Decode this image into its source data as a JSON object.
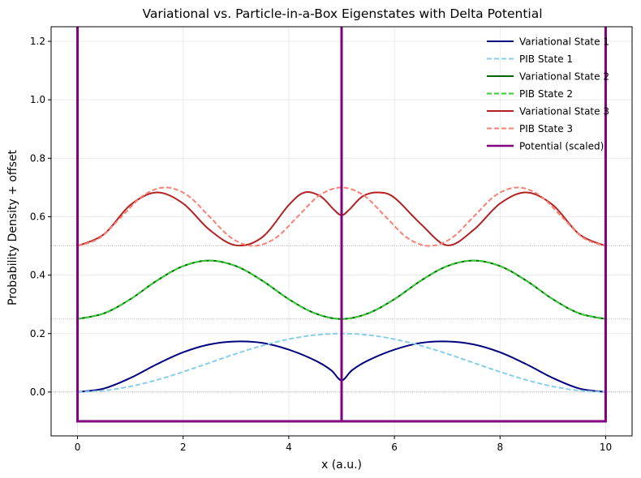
{
  "chart_data": {
    "type": "line",
    "title": "Variational vs. Particle-in-a-Box Eigenstates with Delta Potential",
    "xlabel": "x (a.u.)",
    "ylabel": "Probability Density + offset",
    "xlim": [
      -0.5,
      10.5
    ],
    "ylim": [
      -0.15,
      1.25
    ],
    "xticks": [
      "0",
      "2",
      "4",
      "6",
      "8",
      "10"
    ],
    "xtick_values": [
      0,
      2,
      4,
      6,
      8,
      10
    ],
    "yticks": [
      "0.0",
      "0.2",
      "0.4",
      "0.6",
      "0.8",
      "1.0",
      "1.2"
    ],
    "ytick_values": [
      0.0,
      0.2,
      0.4,
      0.6,
      0.8,
      1.0,
      1.2
    ],
    "grid": true,
    "legend_position": "top-right",
    "offset_lines": [
      0.0,
      0.25,
      0.5
    ],
    "series": [
      {
        "name": "Variational State 1",
        "color": "#000080",
        "style": "solid",
        "x": [
          0,
          0.5,
          1,
          1.5,
          2,
          2.5,
          3,
          3.5,
          4,
          4.5,
          4.8,
          5.0,
          5.2,
          5.5,
          6,
          6.5,
          7,
          7.5,
          8,
          8.5,
          9,
          9.5,
          10
        ],
        "y": [
          0.0,
          0.012,
          0.048,
          0.095,
          0.136,
          0.163,
          0.173,
          0.168,
          0.145,
          0.108,
          0.075,
          0.04,
          0.075,
          0.108,
          0.145,
          0.168,
          0.173,
          0.163,
          0.136,
          0.095,
          0.048,
          0.012,
          0.0
        ]
      },
      {
        "name": "PIB State 1",
        "color": "#87CEEB",
        "style": "dashed",
        "x": [
          0,
          0.5,
          1,
          1.5,
          2,
          2.5,
          3,
          3.5,
          4,
          4.5,
          5,
          5.5,
          6,
          6.5,
          7,
          7.5,
          8,
          8.5,
          9,
          9.5,
          10
        ],
        "y": [
          0.0,
          0.0049,
          0.0191,
          0.0412,
          0.0691,
          0.1,
          0.1309,
          0.1588,
          0.1809,
          0.1951,
          0.2,
          0.1951,
          0.1809,
          0.1588,
          0.1309,
          0.1,
          0.0691,
          0.0412,
          0.0191,
          0.0049,
          0.0
        ]
      },
      {
        "name": "Variational State 2",
        "color": "#006400",
        "style": "solid",
        "x": [
          0,
          0.5,
          1,
          1.5,
          2,
          2.5,
          3,
          3.5,
          4,
          4.5,
          5,
          5.5,
          6,
          6.5,
          7,
          7.5,
          8,
          8.5,
          9,
          9.5,
          10
        ],
        "y": [
          0.25,
          0.2691,
          0.3176,
          0.3809,
          0.431,
          0.45,
          0.431,
          0.3809,
          0.3176,
          0.2691,
          0.25,
          0.2691,
          0.3176,
          0.3809,
          0.431,
          0.45,
          0.431,
          0.3809,
          0.3176,
          0.2691,
          0.25
        ]
      },
      {
        "name": "PIB State 2",
        "color": "#32CD32",
        "style": "dashed",
        "x": [
          0,
          0.5,
          1,
          1.5,
          2,
          2.5,
          3,
          3.5,
          4,
          4.5,
          5,
          5.5,
          6,
          6.5,
          7,
          7.5,
          8,
          8.5,
          9,
          9.5,
          10
        ],
        "y": [
          0.25,
          0.2691,
          0.3176,
          0.3809,
          0.431,
          0.45,
          0.431,
          0.3809,
          0.3176,
          0.2691,
          0.25,
          0.2691,
          0.3176,
          0.3809,
          0.431,
          0.45,
          0.431,
          0.3809,
          0.3176,
          0.2691,
          0.25
        ]
      },
      {
        "name": "Variational State 3",
        "color": "#B22222",
        "style": "solid",
        "x": [
          0,
          0.5,
          1,
          1.5,
          2,
          2.5,
          3,
          3.5,
          4,
          4.3,
          4.6,
          4.85,
          5.0,
          5.15,
          5.4,
          5.7,
          6,
          6.5,
          7,
          7.5,
          8,
          8.5,
          9,
          9.5,
          10
        ],
        "y": [
          0.5,
          0.54,
          0.64,
          0.683,
          0.645,
          0.555,
          0.502,
          0.53,
          0.64,
          0.683,
          0.67,
          0.625,
          0.605,
          0.625,
          0.67,
          0.683,
          0.665,
          0.575,
          0.502,
          0.555,
          0.645,
          0.683,
          0.64,
          0.54,
          0.5
        ]
      },
      {
        "name": "PIB State 3",
        "color": "#FA8072",
        "style": "dashed",
        "x": [
          0,
          0.417,
          0.833,
          1.25,
          1.667,
          2.083,
          2.5,
          2.917,
          3.333,
          3.75,
          4.167,
          4.583,
          5.0,
          5.417,
          5.833,
          6.25,
          6.667,
          7.083,
          7.5,
          7.917,
          8.333,
          8.75,
          9.167,
          9.583,
          10
        ],
        "y": [
          0.5,
          0.5268,
          0.6,
          0.6732,
          0.7,
          0.6732,
          0.6,
          0.5268,
          0.5,
          0.5268,
          0.6,
          0.6732,
          0.7,
          0.6732,
          0.6,
          0.5268,
          0.5,
          0.5268,
          0.6,
          0.6732,
          0.7,
          0.6732,
          0.6,
          0.5268,
          0.5
        ]
      },
      {
        "name": "Potential (scaled)",
        "color": "#800080",
        "style": "solid",
        "x": [
          0,
          0,
          5,
          5,
          5,
          10,
          10
        ],
        "y": [
          1.3,
          -0.1,
          -0.1,
          1.3,
          -0.1,
          -0.1,
          1.3
        ]
      }
    ]
  }
}
